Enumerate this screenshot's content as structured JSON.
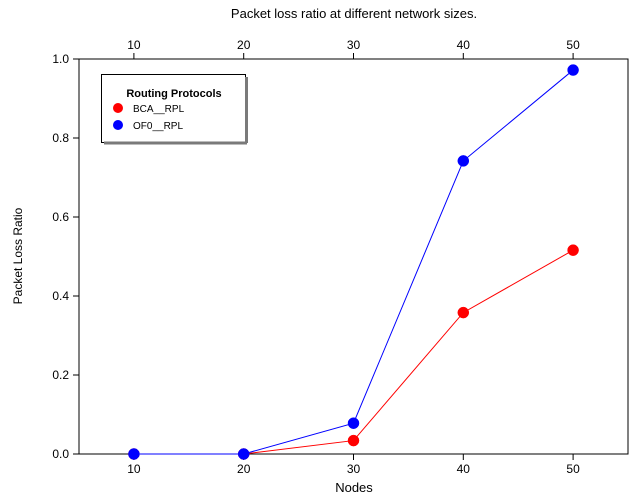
{
  "chart_data": {
    "type": "line",
    "title": "Packet loss ratio at different network sizes.",
    "xlabel": "Nodes",
    "ylabel": "Packet Loss Ratio",
    "x": [
      10,
      20,
      30,
      40,
      50
    ],
    "x_tick_labels": [
      "10",
      "20",
      "30",
      "40",
      "50"
    ],
    "top_x_tick_labels": [
      "10",
      "20",
      "30",
      "40",
      "50"
    ],
    "y_ticks": [
      0.0,
      0.2,
      0.4,
      0.6,
      0.8,
      1.0
    ],
    "y_tick_labels": [
      "0.0",
      "0.2",
      "0.4",
      "0.6",
      "0.8",
      "1.0"
    ],
    "xlim": [
      5,
      55
    ],
    "ylim": [
      0,
      1.0
    ],
    "grid": false,
    "legend": {
      "title": "Routing Protocols",
      "placement": "top-left"
    },
    "series": [
      {
        "name": "BCA__RPL",
        "color": "#ff0000",
        "values": [
          0.0,
          0.0,
          0.034,
          0.358,
          0.516
        ]
      },
      {
        "name": "OF0__RPL",
        "color": "#0000ff",
        "values": [
          0.0,
          0.0,
          0.078,
          0.742,
          0.972
        ]
      }
    ]
  }
}
